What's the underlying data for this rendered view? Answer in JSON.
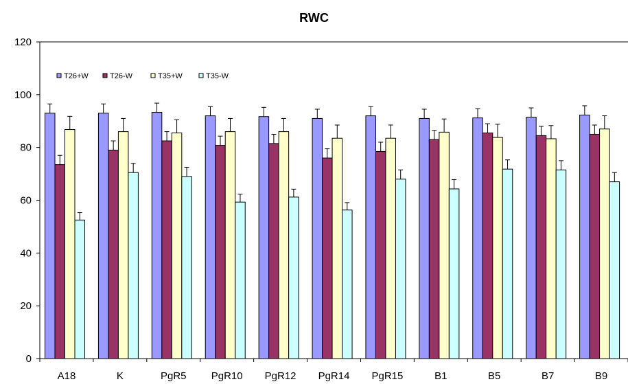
{
  "chart_data": {
    "type": "bar",
    "title": "RWC",
    "xlabel": "",
    "ylabel": "",
    "ylim": [
      0,
      120
    ],
    "yticks": [
      0,
      20,
      40,
      60,
      80,
      100,
      120
    ],
    "grid": false,
    "legend_position": "top-left",
    "categories": [
      "A18",
      "K",
      "PgR5",
      "PgR10",
      "PgR12",
      "PgR14",
      "PgR15",
      "B1",
      "B5",
      "B7",
      "B9"
    ],
    "series": [
      {
        "name": "T26+W",
        "color": "#9999ff",
        "values": [
          93,
          93,
          93.3,
          92,
          91.7,
          91,
          92,
          91,
          91.2,
          91.5,
          92.3
        ],
        "errors": [
          3.5,
          3.5,
          3.5,
          3.5,
          3.5,
          3.5,
          3.5,
          3.5,
          3.5,
          3.5,
          3.5
        ]
      },
      {
        "name": "T26-W",
        "color": "#993366",
        "values": [
          73.5,
          79,
          82.5,
          80.8,
          81.5,
          76,
          78.5,
          83,
          85.5,
          84.5,
          85
        ],
        "errors": [
          3.5,
          3.5,
          3.5,
          3.5,
          3.5,
          3.5,
          3.5,
          3.5,
          3.5,
          3.5,
          3.5
        ]
      },
      {
        "name": "T35+W",
        "color": "#ffffcc",
        "values": [
          86.8,
          86,
          85.5,
          86,
          86,
          83.5,
          83.5,
          85.8,
          83.8,
          83.3,
          87
        ],
        "errors": [
          5,
          5,
          5,
          5,
          5,
          5,
          5,
          5,
          5,
          5,
          5
        ]
      },
      {
        "name": "T35-W",
        "color": "#ccffff",
        "values": [
          52.5,
          70.5,
          69,
          59.3,
          61.2,
          56.3,
          68,
          64.3,
          71.8,
          71.5,
          67
        ],
        "errors": [
          2.8,
          3.5,
          3.5,
          3,
          3,
          2.8,
          3.5,
          3.5,
          3.5,
          3.5,
          3.5
        ]
      }
    ]
  }
}
